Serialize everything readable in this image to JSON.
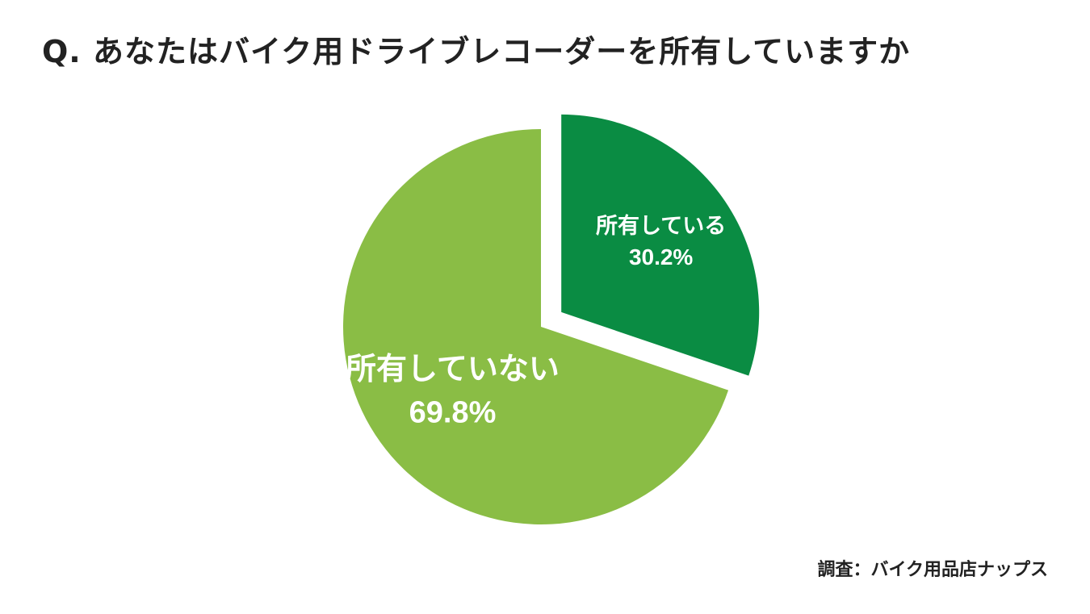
{
  "title": "Q. あなたはバイク用ドライブレコーダーを所有していますか",
  "source": "調査：バイク用品店ナップス",
  "chart_data": {
    "type": "pie",
    "title": "Q. あなたはバイク用ドライブレコーダーを所有していますか",
    "categories": [
      "所有している",
      "所有していない"
    ],
    "values": [
      30.2,
      69.8
    ],
    "value_labels": [
      "30.2%",
      "69.8%"
    ],
    "exploded": [
      true,
      false
    ],
    "colors": [
      "#0a8c43",
      "#8abd45"
    ],
    "start": "12 o'clock",
    "direction": "clockwise"
  }
}
